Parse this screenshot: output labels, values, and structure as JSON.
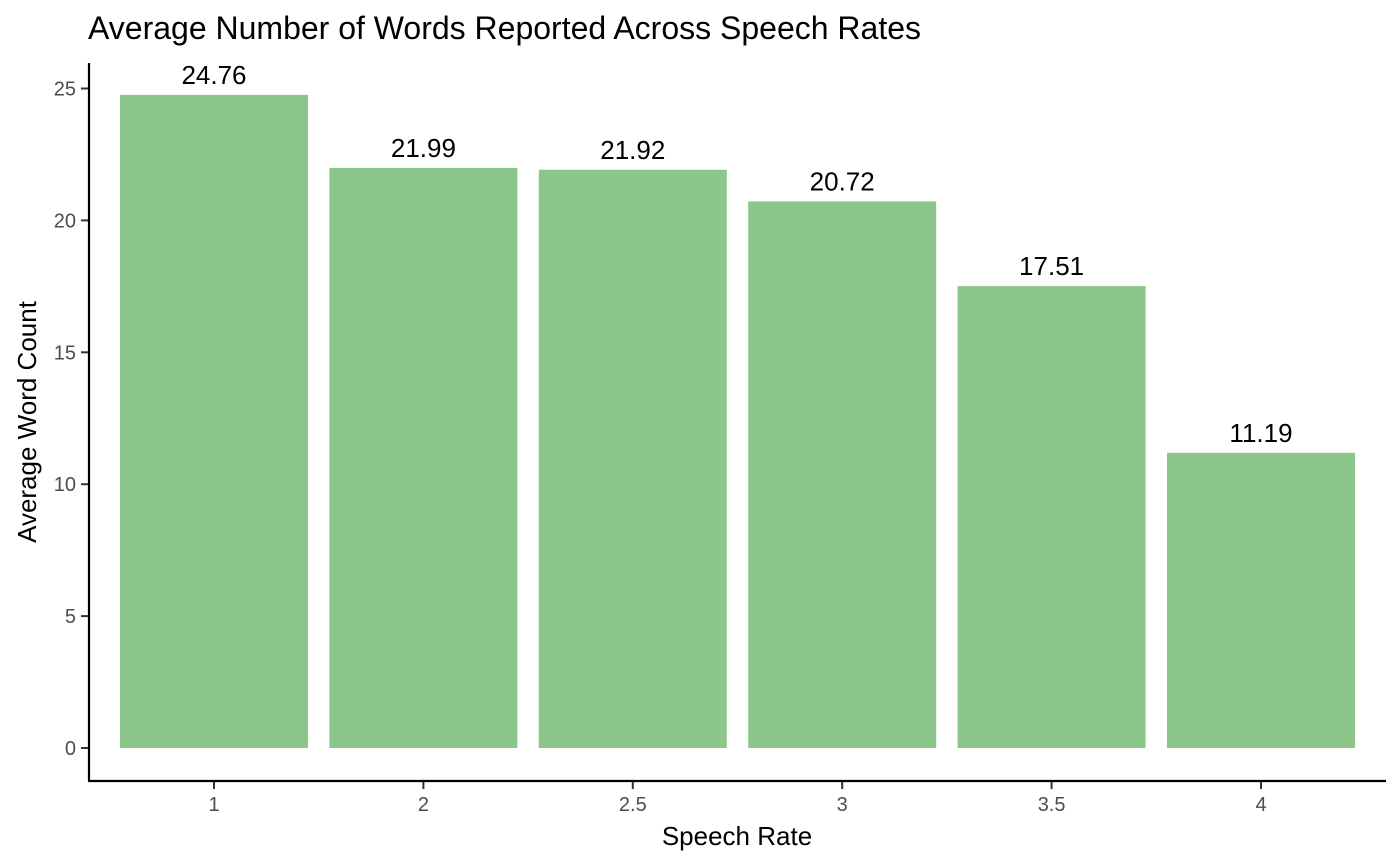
{
  "chart_data": {
    "type": "bar",
    "title": "Average Number of Words Reported Across Speech Rates",
    "xlabel": "Speech Rate",
    "ylabel": "Average Word Count",
    "categories": [
      "1",
      "2",
      "2.5",
      "3",
      "3.5",
      "4"
    ],
    "values": [
      24.76,
      21.99,
      21.92,
      20.72,
      17.51,
      11.19
    ],
    "data_labels": [
      "24.76",
      "21.99",
      "21.92",
      "20.72",
      "17.51",
      "11.19"
    ],
    "y_ticks": [
      0,
      5,
      10,
      15,
      20,
      25
    ],
    "ylim": [
      0,
      25
    ],
    "grid": false,
    "legend": "none",
    "bar_color": "#8dc68b"
  }
}
